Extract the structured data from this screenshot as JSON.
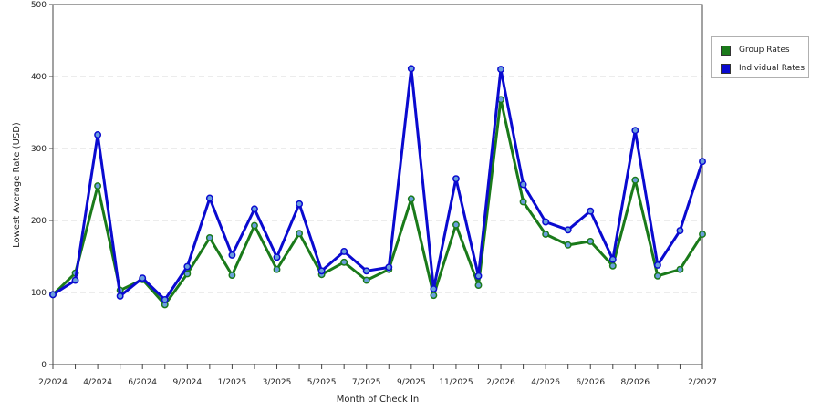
{
  "chart_data": {
    "type": "line",
    "title": "",
    "xlabel": "Month of Check In",
    "ylabel": "Lowest Average Rate (USD)",
    "ylim": [
      0,
      500
    ],
    "yticks": [
      0,
      100,
      200,
      300,
      400,
      500
    ],
    "grid": true,
    "legend_position": "top-right",
    "x": [
      "2/2024",
      "3/2024",
      "4/2024",
      "5/2024",
      "6/2024",
      "7/2024",
      "9/2024",
      "10/2024",
      "1/2025",
      "2/2025",
      "3/2025",
      "4/2025",
      "5/2025",
      "6/2025",
      "7/2025",
      "8/2025",
      "9/2025",
      "10/2025",
      "11/2025",
      "12/2025",
      "2/2026",
      "3/2026",
      "4/2026",
      "5/2026",
      "6/2026",
      "7/2026",
      "8/2026",
      "9/2026",
      "12/2026",
      "2/2027"
    ],
    "tick_labels": [
      "2/2024",
      "4/2024",
      "6/2024",
      "9/2024",
      "1/2025",
      "3/2025",
      "5/2025",
      "7/2025",
      "9/2025",
      "11/2025",
      "2/2026",
      "4/2026",
      "6/2026",
      "8/2026",
      "2/2027"
    ],
    "tick_indices": [
      0,
      2,
      4,
      6,
      8,
      10,
      12,
      14,
      16,
      18,
      20,
      22,
      24,
      26,
      29
    ],
    "series": [
      {
        "name": "Group Rates",
        "color": "#1a7a1a",
        "values": [
          97,
          127,
          248,
          103,
          118,
          83,
          126,
          176,
          124,
          193,
          132,
          182,
          125,
          142,
          117,
          132,
          230,
          96,
          194,
          110,
          368,
          226,
          181,
          166,
          171,
          137,
          256,
          123,
          132,
          181
        ]
      },
      {
        "name": "Individual Rates",
        "color": "#0a0ad0",
        "values": [
          97,
          117,
          319,
          95,
          120,
          90,
          136,
          231,
          152,
          216,
          149,
          223,
          130,
          157,
          130,
          135,
          411,
          105,
          258,
          123,
          410,
          250,
          198,
          187,
          213,
          146,
          325,
          138,
          186,
          282
        ]
      }
    ]
  }
}
